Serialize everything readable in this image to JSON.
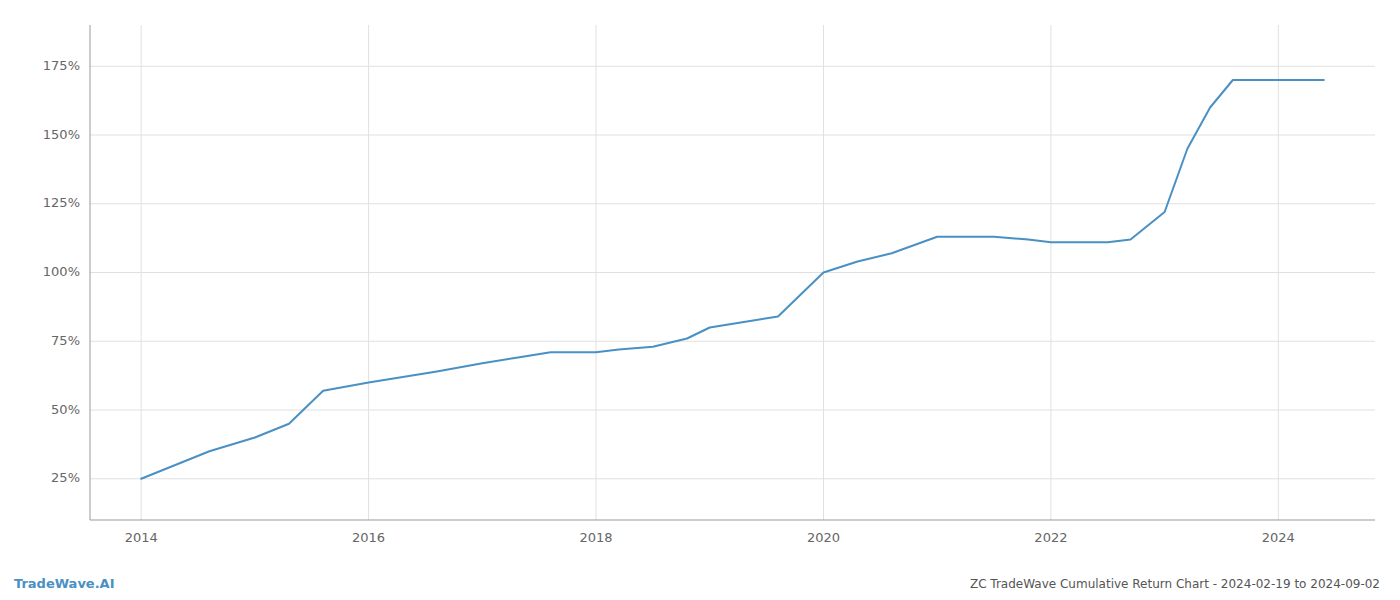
{
  "chart_data": {
    "type": "line",
    "title": "ZC TradeWave Cumulative Return Chart - 2024-02-19 to 2024-09-02",
    "annotations": [
      "TradeWave.AI"
    ],
    "color": "#4a90c4",
    "grid": true,
    "x": [
      2014.0,
      2014.3,
      2014.6,
      2015.0,
      2015.3,
      2015.6,
      2016.0,
      2016.3,
      2016.6,
      2017.0,
      2017.3,
      2017.6,
      2018.0,
      2018.2,
      2018.5,
      2018.8,
      2019.0,
      2019.3,
      2019.6,
      2020.0,
      2020.3,
      2020.6,
      2021.0,
      2021.2,
      2021.5,
      2021.8,
      2022.0,
      2022.2,
      2022.5,
      2022.7,
      2023.0,
      2023.2,
      2023.4,
      2023.6,
      2024.0,
      2024.4
    ],
    "values": [
      25,
      30,
      35,
      40,
      45,
      57,
      60,
      62,
      64,
      67,
      69,
      71,
      71,
      72,
      73,
      76,
      80,
      82,
      84,
      100,
      104,
      107,
      113,
      113,
      113,
      112,
      111,
      111,
      111,
      112,
      122,
      145,
      160,
      170,
      170,
      170
    ],
    "xlim": [
      2013.55,
      2024.85
    ],
    "ylim": [
      10,
      190
    ],
    "xticks": [
      2014,
      2016,
      2018,
      2020,
      2022,
      2024
    ],
    "yticks": [
      {
        "value": 25,
        "label": "25%"
      },
      {
        "value": 50,
        "label": "50%"
      },
      {
        "value": 75,
        "label": "75%"
      },
      {
        "value": 100,
        "label": "100%"
      },
      {
        "value": 125,
        "label": "125%"
      },
      {
        "value": 150,
        "label": "150%"
      },
      {
        "value": 175,
        "label": "175%"
      }
    ]
  }
}
